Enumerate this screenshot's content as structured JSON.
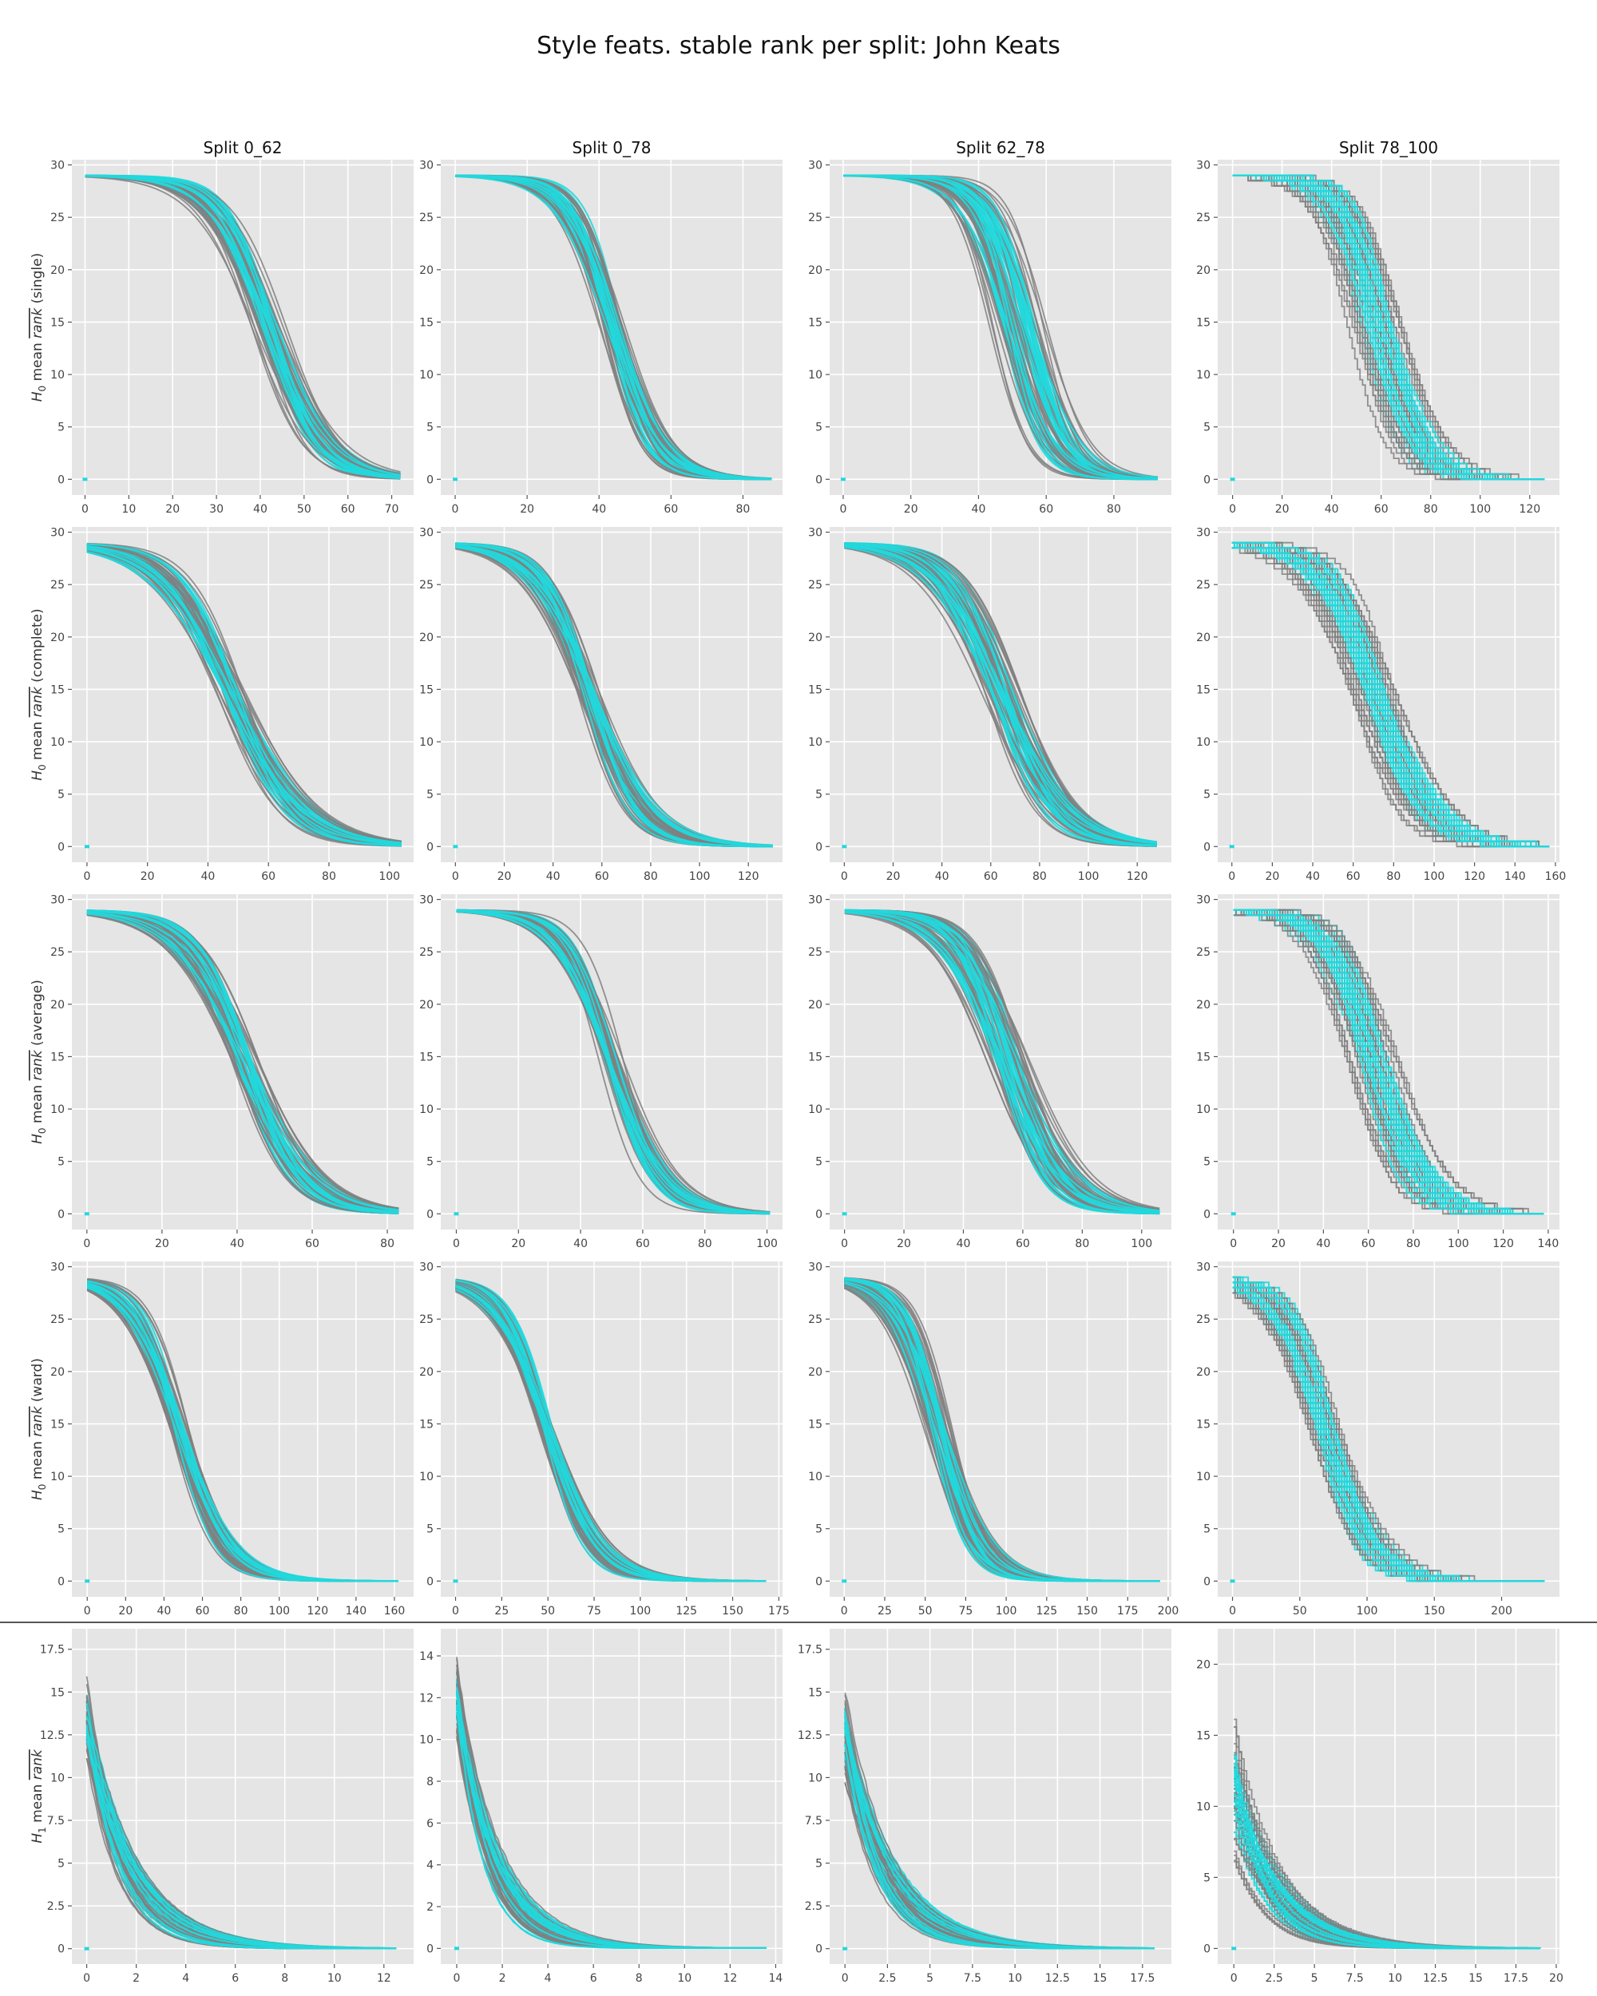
{
  "figure": {
    "title": "Style feats. stable rank per split: John Keats",
    "colors": {
      "background": "#e5e5e5",
      "grid": "#ffffff",
      "grey_curve": "#808080",
      "cyan_curve": "#22d8dc",
      "separator": "#555555"
    }
  },
  "chart_data": [
    {
      "type": "line",
      "col_title": "Split 0_62",
      "ylabel": "",
      "ylim": [
        -1.5,
        30.5
      ],
      "yticks": [
        0,
        5,
        10,
        15,
        20,
        25,
        30
      ],
      "xlim": [
        -3,
        75
      ],
      "xticks": [
        0,
        10,
        20,
        30,
        40,
        50,
        60,
        70
      ],
      "step": false,
      "center": 42,
      "width": 6,
      "spread": 4,
      "top": 29,
      "xend": 72
    },
    {
      "type": "line",
      "col_title": "Split 0_78",
      "ylabel": "",
      "ylim": [
        -1.5,
        30.5
      ],
      "yticks": [
        0,
        5,
        10,
        15,
        20,
        25,
        30
      ],
      "xlim": [
        -4,
        91
      ],
      "xticks": [
        0,
        20,
        40,
        60,
        80
      ],
      "step": false,
      "center": 44,
      "width": 6,
      "spread": 4,
      "top": 29,
      "xend": 88
    },
    {
      "type": "line",
      "col_title": "Split 62_78",
      "ylabel": "",
      "ylim": [
        -1.5,
        30.5
      ],
      "yticks": [
        0,
        5,
        10,
        15,
        20,
        25,
        30
      ],
      "xlim": [
        -4,
        97
      ],
      "xticks": [
        0,
        20,
        40,
        60,
        80
      ],
      "step": false,
      "center": 52,
      "width": 6,
      "spread": 9,
      "top": 29,
      "xend": 93
    },
    {
      "type": "line",
      "col_title": "Split 78_100",
      "ylabel": "",
      "ylim": [
        -1.5,
        30.5
      ],
      "yticks": [
        0,
        5,
        10,
        15,
        20,
        25,
        30
      ],
      "xlim": [
        -6,
        132
      ],
      "xticks": [
        0,
        20,
        40,
        60,
        80,
        100,
        120
      ],
      "step": true,
      "center": 58,
      "width": 8,
      "spread": 12,
      "top": 29,
      "xend": 126
    },
    {
      "type": "line",
      "col_title": "",
      "ylabel": "complete",
      "ylim": [
        -1.5,
        30.5
      ],
      "yticks": [
        0,
        5,
        10,
        15,
        20,
        25,
        30
      ],
      "xlim": [
        -5,
        108
      ],
      "xticks": [
        0,
        20,
        40,
        60,
        80,
        100
      ],
      "step": false,
      "center": 48,
      "width": 11,
      "spread": 5,
      "top": 29,
      "xend": 104
    },
    {
      "type": "line",
      "col_title": "",
      "ylabel": "complete",
      "ylim": [
        -1.5,
        30.5
      ],
      "yticks": [
        0,
        5,
        10,
        15,
        20,
        25,
        30
      ],
      "xlim": [
        -6,
        134
      ],
      "xticks": [
        0,
        20,
        40,
        60,
        80,
        100,
        120
      ],
      "step": false,
      "center": 55,
      "width": 11,
      "spread": 5,
      "top": 29,
      "xend": 130
    },
    {
      "type": "line",
      "col_title": "",
      "ylabel": "complete",
      "ylim": [
        -1.5,
        30.5
      ],
      "yticks": [
        0,
        5,
        10,
        15,
        20,
        25,
        30
      ],
      "xlim": [
        -6,
        134
      ],
      "xticks": [
        0,
        20,
        40,
        60,
        80,
        100,
        120
      ],
      "step": false,
      "center": 65,
      "width": 12,
      "spread": 9,
      "top": 29,
      "xend": 128
    },
    {
      "type": "line",
      "col_title": "",
      "ylabel": "complete",
      "ylim": [
        -1.5,
        30.5
      ],
      "yticks": [
        0,
        5,
        10,
        15,
        20,
        25,
        30
      ],
      "xlim": [
        -7,
        162
      ],
      "xticks": [
        0,
        20,
        40,
        60,
        80,
        100,
        120,
        140,
        160
      ],
      "step": true,
      "center": 70,
      "width": 13,
      "spread": 12,
      "top": 29,
      "xend": 157
    },
    {
      "type": "line",
      "col_title": "",
      "ylabel": "average",
      "ylim": [
        -1.5,
        30.5
      ],
      "yticks": [
        0,
        5,
        10,
        15,
        20,
        25,
        30
      ],
      "xlim": [
        -4,
        87
      ],
      "xticks": [
        0,
        20,
        40,
        60,
        80
      ],
      "step": false,
      "center": 42,
      "width": 8,
      "spread": 4,
      "top": 29,
      "xend": 83
    },
    {
      "type": "line",
      "col_title": "",
      "ylabel": "average",
      "ylim": [
        -1.5,
        30.5
      ],
      "yticks": [
        0,
        5,
        10,
        15,
        20,
        25,
        30
      ],
      "xlim": [
        -5,
        105
      ],
      "xticks": [
        0,
        20,
        40,
        60,
        80,
        100
      ],
      "step": false,
      "center": 50,
      "width": 8,
      "spread": 4,
      "top": 29,
      "xend": 101
    },
    {
      "type": "line",
      "col_title": "",
      "ylabel": "average",
      "ylim": [
        -1.5,
        30.5
      ],
      "yticks": [
        0,
        5,
        10,
        15,
        20,
        25,
        30
      ],
      "xlim": [
        -5,
        110
      ],
      "xticks": [
        0,
        20,
        40,
        60,
        80,
        100
      ],
      "step": false,
      "center": 55,
      "width": 9,
      "spread": 8,
      "top": 29,
      "xend": 106
    },
    {
      "type": "line",
      "col_title": "",
      "ylabel": "average",
      "ylim": [
        -1.5,
        30.5
      ],
      "yticks": [
        0,
        5,
        10,
        15,
        20,
        25,
        30
      ],
      "xlim": [
        -7,
        145
      ],
      "xticks": [
        0,
        20,
        40,
        60,
        80,
        100,
        120,
        140
      ],
      "step": true,
      "center": 62,
      "width": 10,
      "spread": 12,
      "top": 29,
      "xend": 138
    },
    {
      "type": "line",
      "col_title": "",
      "ylabel": "ward",
      "ylim": [
        -1.5,
        30.5
      ],
      "yticks": [
        0,
        5,
        10,
        15,
        20,
        25,
        30
      ],
      "xlim": [
        -8,
        170
      ],
      "xticks": [
        0,
        20,
        40,
        60,
        80,
        100,
        120,
        140,
        160
      ],
      "step": false,
      "center": 48,
      "width": 12,
      "spread": 5,
      "top": 29,
      "xend": 162
    },
    {
      "type": "line",
      "col_title": "",
      "ylabel": "ward",
      "ylim": [
        -1.5,
        30.5
      ],
      "yticks": [
        0,
        5,
        10,
        15,
        20,
        25,
        30
      ],
      "xlim": [
        -8,
        177
      ],
      "xticks": [
        0,
        25,
        50,
        75,
        100,
        125,
        150,
        175
      ],
      "step": false,
      "center": 50,
      "width": 13,
      "spread": 5,
      "top": 29,
      "xend": 168
    },
    {
      "type": "line",
      "col_title": "",
      "ylabel": "ward",
      "ylim": [
        -1.5,
        30.5
      ],
      "yticks": [
        0,
        5,
        10,
        15,
        20,
        25,
        30
      ],
      "xlim": [
        -9,
        202
      ],
      "xticks": [
        0,
        25,
        50,
        75,
        100,
        125,
        150,
        175,
        200
      ],
      "step": false,
      "center": 58,
      "width": 13,
      "spread": 9,
      "top": 29,
      "xend": 195
    },
    {
      "type": "line",
      "col_title": "",
      "ylabel": "ward",
      "ylim": [
        -1.5,
        30.5
      ],
      "yticks": [
        0,
        5,
        10,
        15,
        20,
        25,
        30
      ],
      "xlim": [
        -11,
        243
      ],
      "xticks": [
        0,
        50,
        100,
        150,
        200
      ],
      "step": true,
      "center": 68,
      "width": 17,
      "spread": 14,
      "top": 29,
      "xend": 232
    },
    {
      "type": "line",
      "col_title": "",
      "ylabel": "H1",
      "ylim": [
        -0.9,
        18.7
      ],
      "yticks": [
        0,
        2.5,
        5,
        7.5,
        10,
        12.5,
        15,
        17.5
      ],
      "xlim": [
        -0.6,
        13.2
      ],
      "xticks": [
        0,
        2,
        4,
        6,
        8,
        10,
        12
      ],
      "step": false,
      "decay": true,
      "y0": 13.5,
      "y0spread": 2.5,
      "tau": 1.6,
      "xend": 12.5
    },
    {
      "type": "line",
      "col_title": "",
      "ylabel": "H1",
      "ylim": [
        -0.75,
        15.3
      ],
      "yticks": [
        0,
        2,
        4,
        6,
        8,
        10,
        12,
        14
      ],
      "xlim": [
        -0.7,
        14.3
      ],
      "xticks": [
        0,
        2,
        4,
        6,
        8,
        10,
        12,
        14
      ],
      "step": false,
      "decay": true,
      "y0": 12,
      "y0spread": 2,
      "tau": 1.5,
      "xend": 13.6
    },
    {
      "type": "line",
      "col_title": "",
      "ylabel": "H1",
      "ylim": [
        -0.9,
        18.7
      ],
      "yticks": [
        0,
        2.5,
        5,
        7.5,
        10,
        12.5,
        15,
        17.5
      ],
      "xlim": [
        -0.9,
        19.2
      ],
      "xticks": [
        0,
        2.5,
        5,
        7.5,
        10,
        12.5,
        15,
        17.5
      ],
      "step": false,
      "decay": true,
      "y0": 12.5,
      "y0spread": 3,
      "tau": 2.4,
      "xend": 18.2
    },
    {
      "type": "line",
      "col_title": "",
      "ylabel": "H1",
      "ylim": [
        -1.1,
        22.5
      ],
      "yticks": [
        0,
        5,
        10,
        15,
        20
      ],
      "xlim": [
        -1,
        20.2
      ],
      "xticks": [
        0,
        2.5,
        5,
        7.5,
        10,
        12.5,
        15,
        17.5,
        20
      ],
      "step": true,
      "decay": true,
      "y0": 11,
      "y0spread": 5,
      "tau": 2.4,
      "xend": 19
    }
  ],
  "row_labels": [
    {
      "sub": "0",
      "method": "(single)"
    },
    {
      "sub": "0",
      "method": "(complete)"
    },
    {
      "sub": "0",
      "method": "(average)"
    },
    {
      "sub": "0",
      "method": "(ward)"
    },
    {
      "sub": "1",
      "method": ""
    }
  ],
  "row_label_text": {
    "H": "H",
    "mean": "mean",
    "rank": "rank"
  }
}
